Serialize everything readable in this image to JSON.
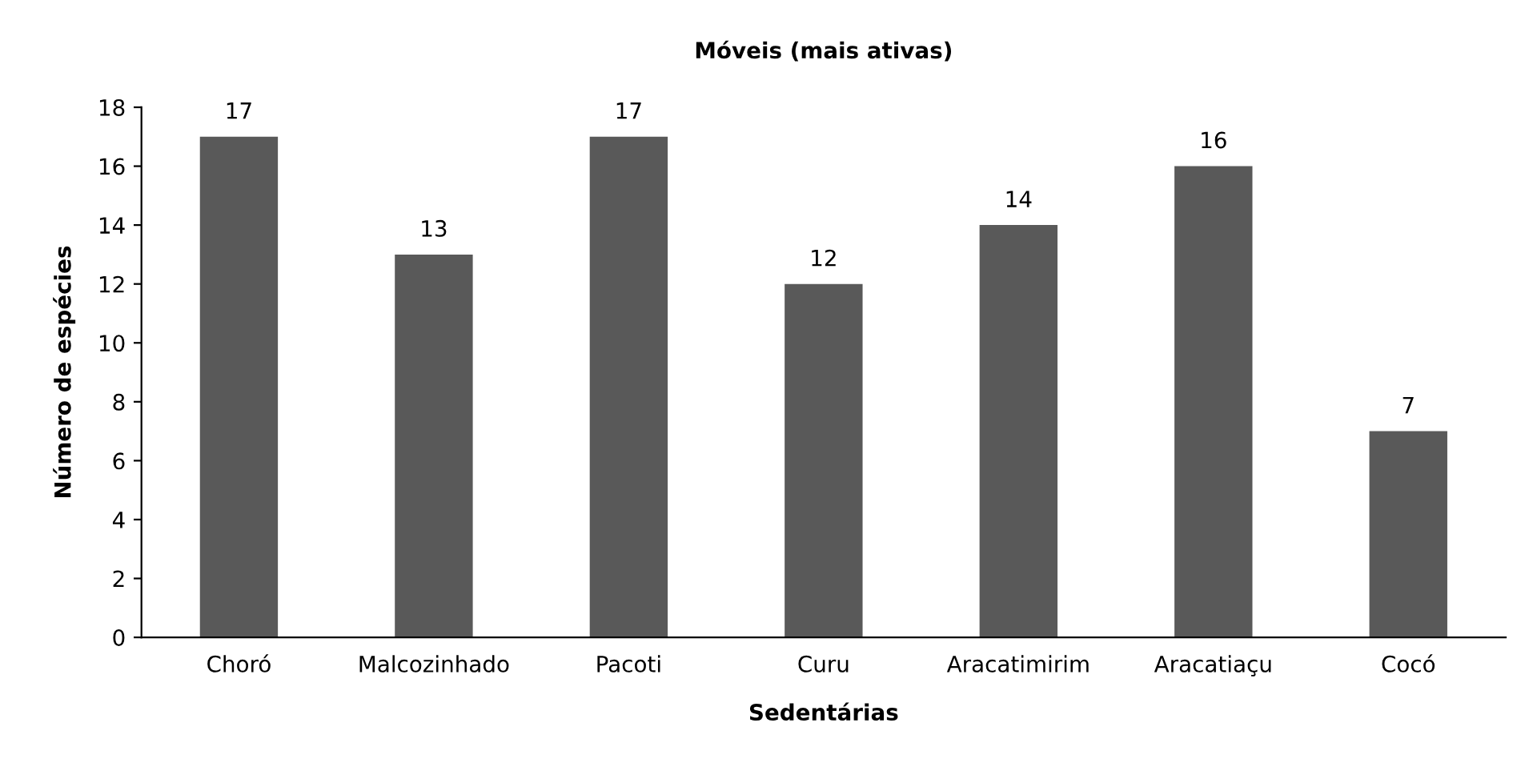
{
  "chart_data": {
    "type": "bar",
    "title": "Móveis (mais ativas)",
    "xlabel": "Sedentárias",
    "ylabel": "Número de espécies",
    "categories": [
      "Choró",
      "Malcozinhado",
      "Pacoti",
      "Curu",
      "Aracatimirim",
      "Aracatiaçu",
      "Cocó"
    ],
    "values": [
      17,
      13,
      17,
      12,
      14,
      16,
      7
    ],
    "color": "#595959",
    "ylim": [
      0,
      18
    ],
    "yticks": [
      0,
      2,
      4,
      6,
      8,
      10,
      12,
      14,
      16,
      18
    ],
    "grid": false,
    "data_labels": true
  }
}
